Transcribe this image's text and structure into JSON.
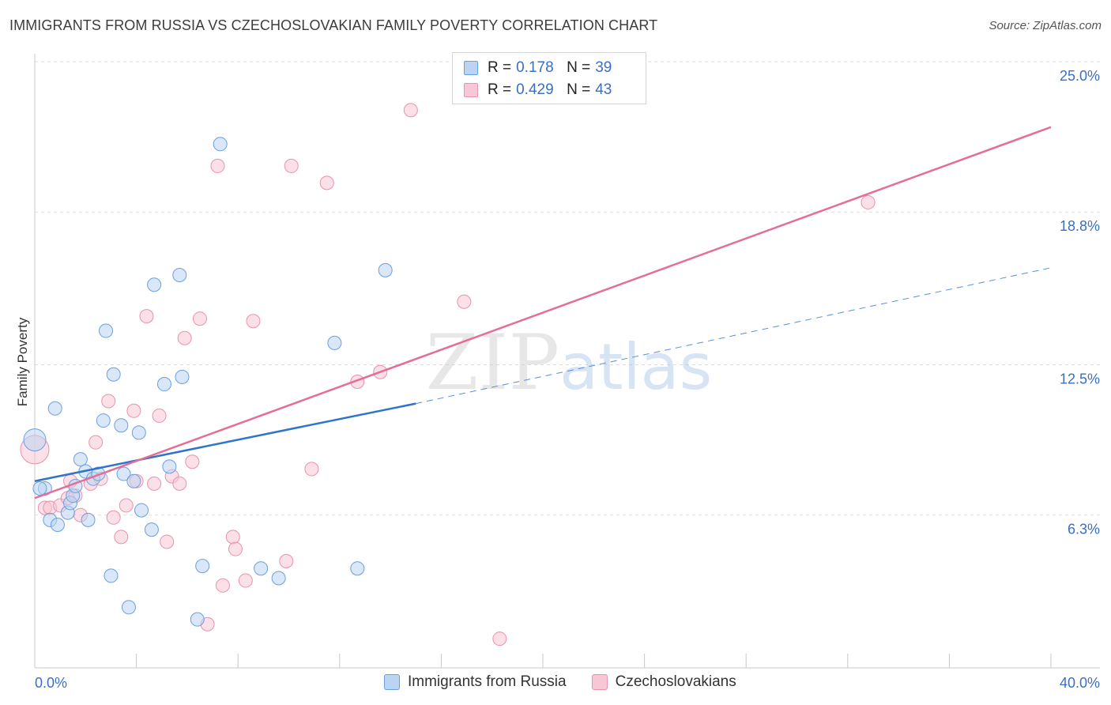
{
  "header": {
    "title": "IMMIGRANTS FROM RUSSIA VS CZECHOSLOVAKIAN FAMILY POVERTY CORRELATION CHART",
    "source": "Source: ZipAtlas.com"
  },
  "legend": {
    "series1": {
      "r_label": "R =",
      "r_value": "0.178",
      "n_label": "N =",
      "n_value": "39"
    },
    "series2": {
      "r_label": "R =",
      "r_value": "0.429",
      "n_label": "N =",
      "n_value": "43"
    }
  },
  "chart_data": {
    "type": "scatter",
    "title": "IMMIGRANTS FROM RUSSIA VS CZECHOSLOVAKIAN FAMILY POVERTY CORRELATION CHART",
    "xlabel": "",
    "ylabel": "Family Poverty",
    "xlim": [
      0,
      40
    ],
    "ylim": [
      0,
      25
    ],
    "x_tick_labels": [
      "0.0%",
      "40.0%"
    ],
    "y_ticks": [
      6.3,
      12.5,
      18.8,
      25.0
    ],
    "y_tick_labels": [
      "6.3%",
      "12.5%",
      "18.8%",
      "25.0%"
    ],
    "grid": true,
    "watermark": "ZIPatlas",
    "colors": {
      "blue": "#6a9fe0",
      "blue_fill": "#bcd4f3",
      "blue_line": "#2f74cc",
      "pink": "#e892ac",
      "pink_fill": "#f8c6d4",
      "pink_line": "#e46e96",
      "axis_label": "#3a6fc4"
    },
    "series": [
      {
        "name": "Immigrants from Russia",
        "points": [
          [
            0.0,
            9.4
          ],
          [
            0.4,
            7.4
          ],
          [
            0.6,
            6.1
          ],
          [
            0.8,
            10.7
          ],
          [
            0.9,
            5.9
          ],
          [
            1.3,
            6.4
          ],
          [
            1.4,
            6.8
          ],
          [
            1.5,
            7.1
          ],
          [
            1.6,
            7.5
          ],
          [
            1.8,
            8.6
          ],
          [
            2.0,
            8.1
          ],
          [
            2.1,
            6.1
          ],
          [
            2.3,
            7.8
          ],
          [
            2.5,
            8.0
          ],
          [
            2.7,
            10.2
          ],
          [
            2.8,
            13.9
          ],
          [
            3.0,
            3.8
          ],
          [
            3.1,
            12.1
          ],
          [
            3.4,
            10.0
          ],
          [
            3.5,
            8.0
          ],
          [
            3.7,
            2.5
          ],
          [
            3.9,
            7.7
          ],
          [
            4.1,
            9.7
          ],
          [
            4.2,
            6.5
          ],
          [
            4.6,
            5.7
          ],
          [
            4.7,
            15.8
          ],
          [
            5.1,
            11.7
          ],
          [
            5.3,
            8.3
          ],
          [
            5.7,
            16.2
          ],
          [
            5.8,
            12.0
          ],
          [
            6.4,
            2.0
          ],
          [
            6.6,
            4.2
          ],
          [
            7.3,
            21.6
          ],
          [
            8.9,
            4.1
          ],
          [
            9.6,
            3.7
          ],
          [
            11.8,
            13.4
          ],
          [
            12.7,
            4.1
          ],
          [
            13.8,
            16.4
          ],
          [
            0.2,
            7.4
          ]
        ],
        "trend": {
          "x0": 0,
          "y0": 7.7,
          "x1": 15,
          "y1": 10.9,
          "dash_x1": 40,
          "dash_y1": 16.5
        }
      },
      {
        "name": "Czechoslovakians",
        "points": [
          [
            0.0,
            9.0
          ],
          [
            0.4,
            6.6
          ],
          [
            0.6,
            6.6
          ],
          [
            1.0,
            6.7
          ],
          [
            1.3,
            7.0
          ],
          [
            1.4,
            7.7
          ],
          [
            1.6,
            7.1
          ],
          [
            1.8,
            6.3
          ],
          [
            2.2,
            7.6
          ],
          [
            2.4,
            9.3
          ],
          [
            2.6,
            7.8
          ],
          [
            2.9,
            11.0
          ],
          [
            3.1,
            6.2
          ],
          [
            3.4,
            5.4
          ],
          [
            3.6,
            6.7
          ],
          [
            3.9,
            10.6
          ],
          [
            4.0,
            7.7
          ],
          [
            4.4,
            14.5
          ],
          [
            4.7,
            7.6
          ],
          [
            4.9,
            10.4
          ],
          [
            5.2,
            5.2
          ],
          [
            5.4,
            7.9
          ],
          [
            5.7,
            7.6
          ],
          [
            5.9,
            13.6
          ],
          [
            6.2,
            8.5
          ],
          [
            6.5,
            14.4
          ],
          [
            6.8,
            1.8
          ],
          [
            7.2,
            20.7
          ],
          [
            7.4,
            3.4
          ],
          [
            7.8,
            5.4
          ],
          [
            7.9,
            4.9
          ],
          [
            8.3,
            3.6
          ],
          [
            8.6,
            14.3
          ],
          [
            9.9,
            4.4
          ],
          [
            10.1,
            20.7
          ],
          [
            10.9,
            8.2
          ],
          [
            11.5,
            20.0
          ],
          [
            12.7,
            11.8
          ],
          [
            13.6,
            12.2
          ],
          [
            14.8,
            23.0
          ],
          [
            16.9,
            15.1
          ],
          [
            18.3,
            1.2
          ],
          [
            32.8,
            19.2
          ]
        ],
        "trend": {
          "x0": 0,
          "y0": 7.0,
          "x1": 40,
          "y1": 22.3
        }
      }
    ]
  }
}
